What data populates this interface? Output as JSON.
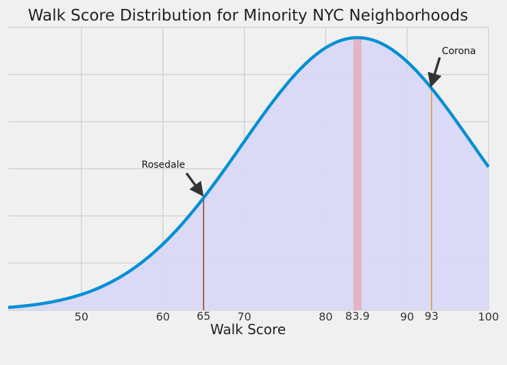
{
  "chart_data": {
    "type": "area",
    "title": "Walk Score Distribution for Minority NYC Neighborhoods",
    "xlabel": "Walk Score",
    "ylabel": "",
    "xlim": [
      41,
      100
    ],
    "ylim": [
      0,
      1
    ],
    "x_ticks": [
      50,
      60,
      70,
      80,
      90,
      100
    ],
    "grid": true,
    "curve": {
      "distribution": "normal",
      "mean": 83.9,
      "std": 14.2,
      "color": "#008fd5",
      "fill_color": "#d8d8f6"
    },
    "mean_marker": {
      "x": 83.9,
      "label": "83.9",
      "color": "#e8a0a8"
    },
    "markers": [
      {
        "x": 65,
        "label": "65",
        "color": "#a0522d"
      },
      {
        "x": 93,
        "label": "93",
        "color": "#d9a04a"
      }
    ],
    "annotations": [
      {
        "text": "Rosedale",
        "x": 65
      },
      {
        "text": "Corona",
        "x": 93
      }
    ]
  }
}
